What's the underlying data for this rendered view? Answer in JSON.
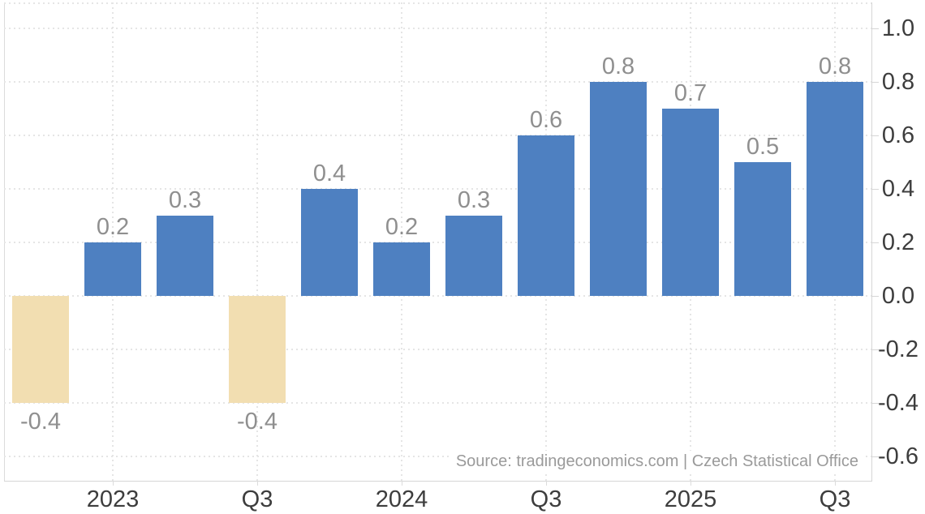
{
  "chart_data": {
    "type": "bar",
    "title": "",
    "values": [
      -0.4,
      0.2,
      0.3,
      -0.4,
      0.4,
      0.2,
      0.3,
      0.6,
      0.8,
      0.7,
      0.5,
      0.8
    ],
    "bar_labels": [
      "-0.4",
      "0.2",
      "0.3",
      "-0.4",
      "0.4",
      "0.2",
      "0.3",
      "0.6",
      "0.8",
      "0.7",
      "0.5",
      "0.8"
    ],
    "x_tick_labels": [
      "2023",
      "Q3",
      "2024",
      "Q3",
      "2025",
      "Q3"
    ],
    "x_tick_slots": [
      1,
      3,
      5,
      7,
      9,
      11
    ],
    "y_ticks": [
      1.0,
      0.8,
      0.6,
      0.4,
      0.2,
      0.0,
      -0.2,
      -0.4,
      -0.6
    ],
    "y_tick_labels": [
      "1.0",
      "0.8",
      "0.6",
      "0.4",
      "0.2",
      "0.0",
      "-0.2",
      "-0.4",
      "-0.6"
    ],
    "ylim": [
      -0.69,
      1.1
    ],
    "grid": "dotted",
    "legend": "none",
    "y_axis_side": "right",
    "colors": {
      "positive": "#4e80c1",
      "negative": "#f2deb1"
    },
    "source": "Source: tradingeconomics.com | Czech Statistical Office"
  }
}
